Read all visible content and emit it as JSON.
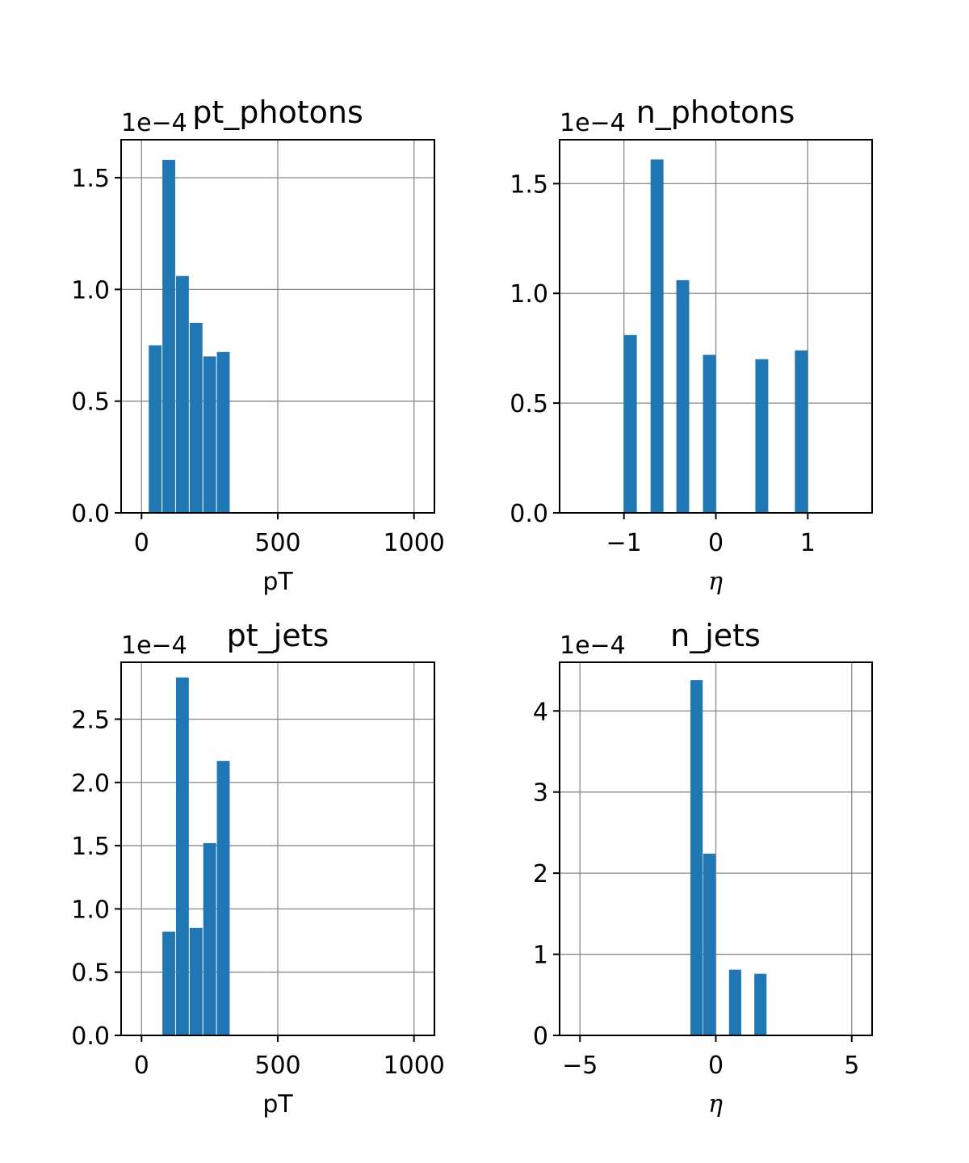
{
  "chart_data": [
    {
      "type": "bar",
      "title": "pt_photons",
      "xlabel": "pT",
      "ylabel": "",
      "offset_text": "1e−4",
      "color": "#1f77b4",
      "xlim": [
        -75,
        1075
      ],
      "ylim": [
        0,
        1.67
      ],
      "xticks": [
        0,
        500,
        1000
      ],
      "xtick_labels": [
        "0",
        "500",
        "1000"
      ],
      "yticks": [
        0.0,
        0.5,
        1.0,
        1.5
      ],
      "ytick_labels": [
        "0.0",
        "0.5",
        "1.0",
        "1.5"
      ],
      "grid": true,
      "bar_width": 47,
      "bars": [
        {
          "x": 50,
          "value": 0.75
        },
        {
          "x": 100,
          "value": 1.58
        },
        {
          "x": 150,
          "value": 1.06
        },
        {
          "x": 200,
          "value": 0.85
        },
        {
          "x": 250,
          "value": 0.7
        },
        {
          "x": 300,
          "value": 0.72
        }
      ]
    },
    {
      "type": "bar",
      "title": "n_photons",
      "xlabel": "η",
      "ylabel": "",
      "offset_text": "1e−4",
      "color": "#1f77b4",
      "xlim": [
        -1.7,
        1.7
      ],
      "ylim": [
        0,
        1.7
      ],
      "xticks": [
        -1,
        0,
        1
      ],
      "xtick_labels": [
        "−1",
        "0",
        "1"
      ],
      "yticks": [
        0.0,
        0.5,
        1.0,
        1.5
      ],
      "ytick_labels": [
        "0.0",
        "0.5",
        "1.0",
        "1.5"
      ],
      "grid": true,
      "bar_width": 0.14,
      "bars": [
        {
          "x": -0.93,
          "value": 0.81
        },
        {
          "x": -0.64,
          "value": 1.61
        },
        {
          "x": -0.36,
          "value": 1.06
        },
        {
          "x": -0.07,
          "value": 0.72
        },
        {
          "x": 0.5,
          "value": 0.7
        },
        {
          "x": 0.93,
          "value": 0.74
        }
      ]
    },
    {
      "type": "bar",
      "title": "pt_jets",
      "xlabel": "pT",
      "ylabel": "",
      "offset_text": "1e−4",
      "color": "#1f77b4",
      "xlim": [
        -75,
        1075
      ],
      "ylim": [
        0,
        2.95
      ],
      "xticks": [
        0,
        500,
        1000
      ],
      "xtick_labels": [
        "0",
        "500",
        "1000"
      ],
      "yticks": [
        0.0,
        0.5,
        1.0,
        1.5,
        2.0,
        2.5
      ],
      "ytick_labels": [
        "0.0",
        "0.5",
        "1.0",
        "1.5",
        "2.0",
        "2.5"
      ],
      "grid": true,
      "bar_width": 47,
      "bars": [
        {
          "x": 100,
          "value": 0.82
        },
        {
          "x": 150,
          "value": 2.83
        },
        {
          "x": 200,
          "value": 0.85
        },
        {
          "x": 250,
          "value": 1.52
        },
        {
          "x": 300,
          "value": 2.17
        }
      ]
    },
    {
      "type": "bar",
      "title": "n_jets",
      "xlabel": "η",
      "ylabel": "",
      "offset_text": "1e−4",
      "color": "#1f77b4",
      "xlim": [
        -5.75,
        5.75
      ],
      "ylim": [
        0,
        4.6
      ],
      "xticks": [
        -5,
        0,
        5
      ],
      "xtick_labels": [
        "−5",
        "0",
        "5"
      ],
      "yticks": [
        0,
        1,
        2,
        3,
        4
      ],
      "ytick_labels": [
        "0",
        "1",
        "2",
        "3",
        "4"
      ],
      "grid": true,
      "bar_width": 0.45,
      "bars": [
        {
          "x": -0.71,
          "value": 4.38
        },
        {
          "x": -0.24,
          "value": 2.24
        },
        {
          "x": 0.71,
          "value": 0.81
        },
        {
          "x": 1.64,
          "value": 0.76
        }
      ]
    }
  ]
}
